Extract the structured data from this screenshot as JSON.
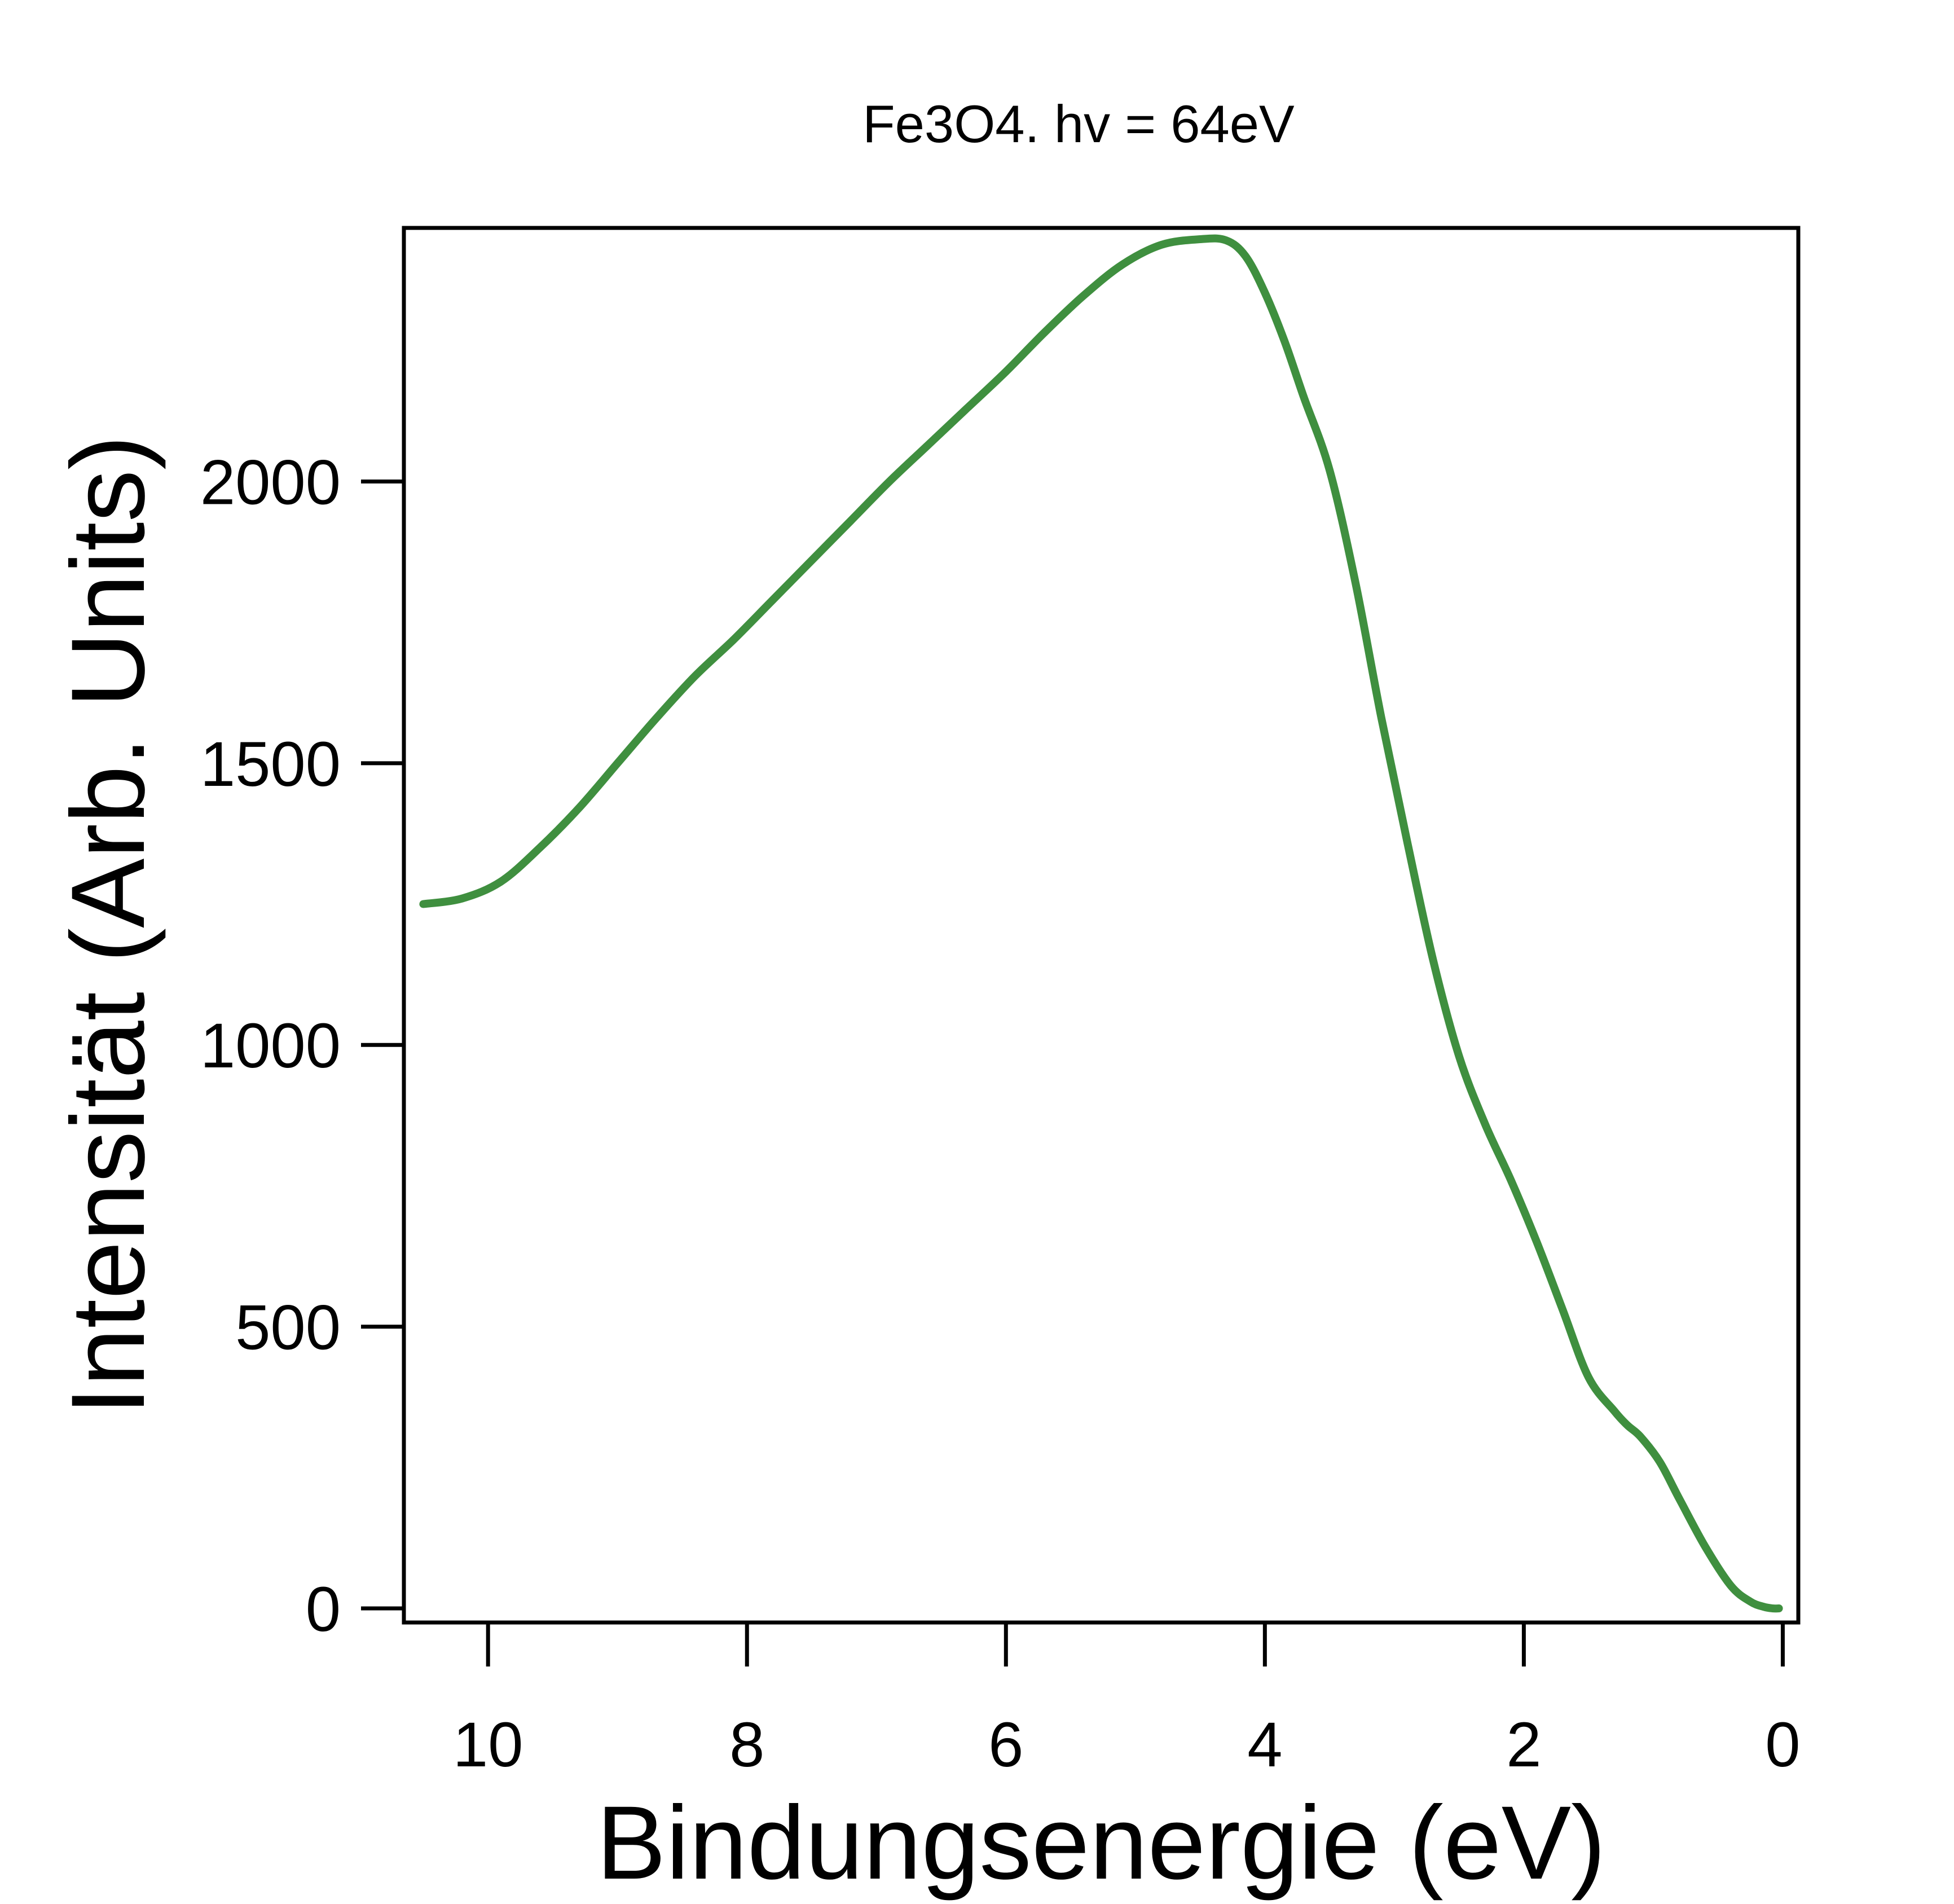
{
  "chart_data": {
    "type": "line",
    "title": "Fe3O4. hv = 64eV",
    "xlabel": "Bindungsenergie (eV)",
    "ylabel": "Intensität (Arb. Units)",
    "x_reversed": true,
    "xlim": [
      10.65,
      -0.12
    ],
    "ylim": [
      -25,
      2450
    ],
    "x_ticks": [
      10,
      8,
      6,
      4,
      2,
      0
    ],
    "y_ticks": [
      0,
      500,
      1000,
      1500,
      2000
    ],
    "grid": false,
    "legend": "none",
    "line_color": "#3f8f3f",
    "series": [
      {
        "x": [
          10.5,
          10.2,
          9.9,
          9.6,
          9.3,
          9.0,
          8.7,
          8.4,
          8.1,
          7.8,
          7.5,
          7.2,
          6.9,
          6.6,
          6.3,
          6.0,
          5.7,
          5.4,
          5.1,
          4.8,
          4.5,
          4.3,
          4.15,
          4.0,
          3.85,
          3.7,
          3.5,
          3.3,
          3.1,
          2.9,
          2.7,
          2.5,
          2.3,
          2.1,
          1.9,
          1.7,
          1.5,
          1.3,
          1.2,
          1.1,
          0.95,
          0.8,
          0.6,
          0.4,
          0.25,
          0.15,
          0.08,
          0.03
        ],
        "y": [
          1250,
          1260,
          1290,
          1350,
          1420,
          1500,
          1580,
          1655,
          1720,
          1790,
          1860,
          1930,
          2000,
          2065,
          2130,
          2195,
          2265,
          2330,
          2385,
          2420,
          2430,
          2428,
          2400,
          2335,
          2250,
          2150,
          2020,
          1820,
          1580,
          1360,
          1150,
          980,
          860,
          760,
          650,
          530,
          410,
          350,
          325,
          305,
          260,
          195,
          110,
          40,
          12,
          3,
          0,
          0
        ]
      }
    ]
  }
}
